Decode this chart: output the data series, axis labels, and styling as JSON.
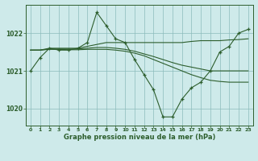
{
  "title": "Graphe pression niveau de la mer (hPa)",
  "bg_color": "#ceeaea",
  "grid_color": "#8bbcbc",
  "line_color": "#2d5e2d",
  "xlim": [
    -0.5,
    23.5
  ],
  "ylim": [
    1019.55,
    1022.75
  ],
  "yticks": [
    1020,
    1021,
    1022
  ],
  "xticks": [
    0,
    1,
    2,
    3,
    4,
    5,
    6,
    7,
    8,
    9,
    10,
    11,
    12,
    13,
    14,
    15,
    16,
    17,
    18,
    19,
    20,
    21,
    22,
    23
  ],
  "series": [
    {
      "x": [
        0,
        1,
        2,
        3,
        4,
        5,
        6,
        7,
        8,
        9,
        10,
        11,
        12,
        13,
        14,
        15,
        16,
        17,
        18,
        19,
        20,
        21,
        22,
        23
      ],
      "y": [
        1021.0,
        1021.35,
        1021.6,
        1021.55,
        1021.55,
        1021.6,
        1021.75,
        1022.55,
        1022.2,
        1021.85,
        1021.75,
        1021.3,
        1020.9,
        1020.5,
        1019.78,
        1019.78,
        1020.25,
        1020.55,
        1020.7,
        1021.0,
        1021.5,
        1021.65,
        1022.0,
        1022.1
      ],
      "marker": true
    },
    {
      "x": [
        0,
        1,
        2,
        3,
        4,
        5,
        6,
        7,
        8,
        9,
        10,
        11,
        12,
        13,
        14,
        15,
        16,
        17,
        18,
        19,
        20,
        21,
        22,
        23
      ],
      "y": [
        1021.55,
        1021.55,
        1021.6,
        1021.6,
        1021.6,
        1021.6,
        1021.65,
        1021.7,
        1021.75,
        1021.75,
        1021.75,
        1021.75,
        1021.75,
        1021.75,
        1021.75,
        1021.75,
        1021.75,
        1021.78,
        1021.8,
        1021.8,
        1021.8,
        1021.82,
        1021.83,
        1021.85
      ],
      "marker": false
    },
    {
      "x": [
        0,
        1,
        2,
        3,
        4,
        5,
        6,
        7,
        8,
        9,
        10,
        11,
        12,
        13,
        14,
        15,
        16,
        17,
        18,
        19,
        20,
        21,
        22,
        23
      ],
      "y": [
        1021.55,
        1021.55,
        1021.58,
        1021.58,
        1021.58,
        1021.58,
        1021.6,
        1021.62,
        1021.62,
        1021.6,
        1021.57,
        1021.52,
        1021.45,
        1021.38,
        1021.3,
        1021.22,
        1021.15,
        1021.1,
        1021.05,
        1021.0,
        1021.0,
        1021.0,
        1021.0,
        1021.0
      ],
      "marker": false
    },
    {
      "x": [
        0,
        1,
        2,
        3,
        4,
        5,
        6,
        7,
        8,
        9,
        10,
        11,
        12,
        13,
        14,
        15,
        16,
        17,
        18,
        19,
        20,
        21,
        22,
        23
      ],
      "y": [
        1021.55,
        1021.55,
        1021.57,
        1021.57,
        1021.56,
        1021.56,
        1021.57,
        1021.57,
        1021.57,
        1021.55,
        1021.52,
        1021.47,
        1021.4,
        1021.3,
        1021.2,
        1021.1,
        1021.0,
        1020.9,
        1020.82,
        1020.75,
        1020.72,
        1020.7,
        1020.7,
        1020.7
      ],
      "marker": false
    }
  ]
}
